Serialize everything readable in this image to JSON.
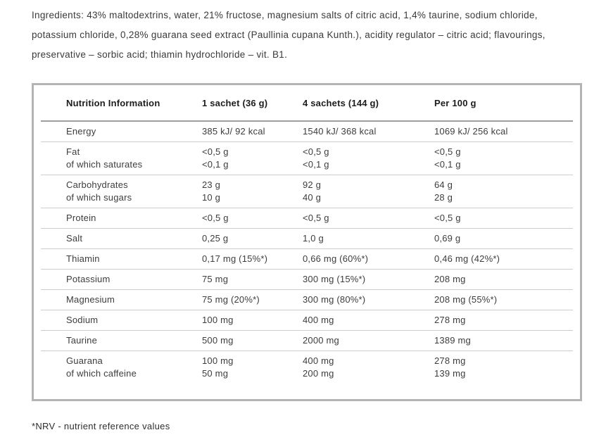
{
  "ingredients_text": "Ingredients: 43% maltodextrins, water, 21% fructose, magnesium salts of citric acid, 1,4% taurine, sodium chloride, potassium chloride, 0,28% guarana seed extract (Paullinia cupana Kunth.), acidity regulator – citric acid; flavourings, preservative – sorbic acid; thiamin hydrochloride – vit. B1.",
  "table": {
    "headers": [
      "Nutrition Information",
      "1 sachet (36 g)",
      "4 sachets (144 g)",
      "Per 100 g"
    ],
    "rows": [
      {
        "label": "Energy",
        "values": [
          "385 kJ/ 92 kcal",
          "1540 kJ/ 368 kcal",
          "1069 kJ/ 256 kcal"
        ]
      },
      {
        "label": "Fat",
        "sublabel": "of which saturates",
        "values": [
          "<0,5 g",
          "<0,5 g",
          "<0,5 g"
        ],
        "subvalues": [
          "<0,1 g",
          "<0,1 g",
          "<0,1 g"
        ]
      },
      {
        "label": "Carbohydrates",
        "sublabel": "of which sugars",
        "values": [
          "23 g",
          "92 g",
          "64 g"
        ],
        "subvalues": [
          "10 g",
          "40 g",
          "28 g"
        ]
      },
      {
        "label": "Protein",
        "values": [
          "<0,5 g",
          "<0,5 g",
          "<0,5 g"
        ]
      },
      {
        "label": "Salt",
        "values": [
          "0,25 g",
          "1,0 g",
          "0,69 g"
        ]
      },
      {
        "label": "Thiamin",
        "values": [
          "0,17 mg (15%*)",
          "0,66 mg (60%*)",
          "0,46 mg (42%*)"
        ]
      },
      {
        "label": "Potassium",
        "values": [
          "75 mg",
          "300 mg (15%*)",
          "208 mg"
        ]
      },
      {
        "label": "Magnesium",
        "values": [
          "75 mg (20%*)",
          "300 mg (80%*)",
          "208 mg (55%*)"
        ]
      },
      {
        "label": "Sodium",
        "values": [
          "100 mg",
          "400 mg",
          "278 mg"
        ]
      },
      {
        "label": "Taurine",
        "values": [
          "500 mg",
          "2000 mg",
          "1389 mg"
        ]
      },
      {
        "label": "Guarana",
        "sublabel": "of which caffeine",
        "values": [
          "100 mg",
          "400 mg",
          "278 mg"
        ],
        "subvalues": [
          "50 mg",
          "200 mg",
          "139 mg"
        ]
      }
    ]
  },
  "footnote": "*NRV - nutrient reference values",
  "colors": {
    "table_border": "#b4b4b4",
    "header_rule": "#9e9e9e",
    "row_rule": "#cdcdcd",
    "body_text": "#3d3d3d",
    "header_text": "#1c1c1c"
  }
}
